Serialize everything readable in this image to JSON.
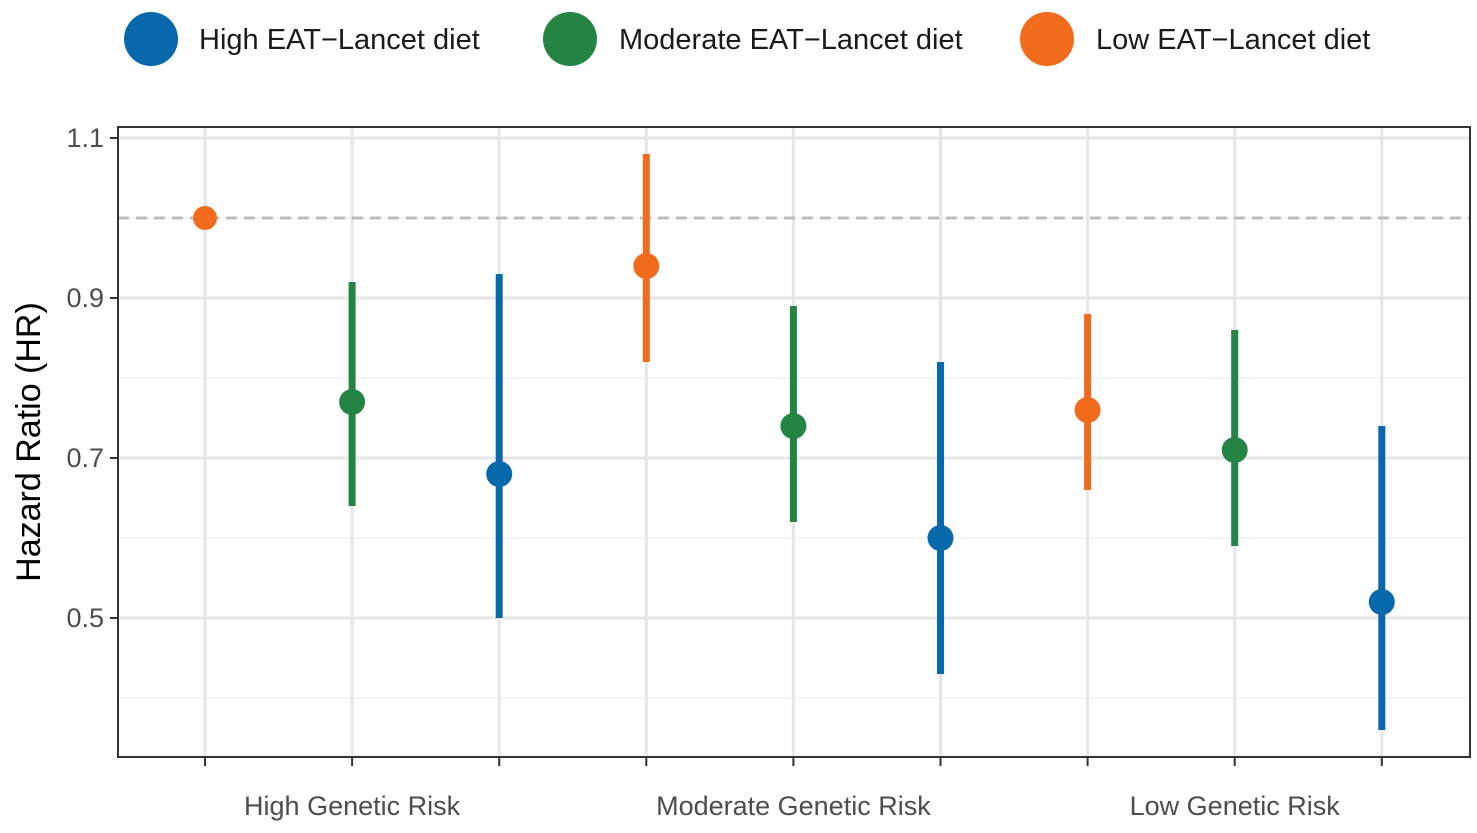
{
  "colors": {
    "high_diet": "#0868ac",
    "moderate_diet": "#238443",
    "low_diet": "#f26b1d",
    "reference_line": "#bdbdbd",
    "grid_major": "#e6e6e6",
    "grid_minor": "#f0f0f0",
    "panel_border": "#333333"
  },
  "chart_data": {
    "type": "scatter",
    "subtype": "point-range (dot and whisker)",
    "title": "",
    "xlabel": "",
    "ylabel": "Hazard Ratio (HR)",
    "ylim": [
      0.33,
      1.11
    ],
    "yticks": [
      0.5,
      0.7,
      0.9,
      1.1
    ],
    "ytick_labels": [
      "0.5",
      "0.7",
      "0.9",
      "1.1"
    ],
    "reference_line": 1.0,
    "grid": true,
    "legend_position": "top",
    "groups": [
      "High Genetic Risk",
      "Moderate Genetic Risk",
      "Low Genetic Risk"
    ],
    "series": [
      {
        "name": "High EAT−Lancet diet",
        "color_key": "high_diet",
        "points": [
          {
            "group": "High Genetic Risk",
            "slot": 2,
            "hr": 0.68,
            "lower": 0.5,
            "upper": 0.93
          },
          {
            "group": "Moderate Genetic Risk",
            "slot": 5,
            "hr": 0.6,
            "lower": 0.43,
            "upper": 0.82
          },
          {
            "group": "Low Genetic Risk",
            "slot": 8,
            "hr": 0.52,
            "lower": 0.36,
            "upper": 0.74
          }
        ]
      },
      {
        "name": "Moderate EAT−Lancet diet",
        "color_key": "moderate_diet",
        "points": [
          {
            "group": "High Genetic Risk",
            "slot": 1,
            "hr": 0.77,
            "lower": 0.64,
            "upper": 0.92
          },
          {
            "group": "Moderate Genetic Risk",
            "slot": 4,
            "hr": 0.74,
            "lower": 0.62,
            "upper": 0.89
          },
          {
            "group": "Low Genetic Risk",
            "slot": 7,
            "hr": 0.71,
            "lower": 0.59,
            "upper": 0.86
          }
        ]
      },
      {
        "name": "Low EAT−Lancet diet",
        "color_key": "low_diet",
        "points": [
          {
            "group": "High Genetic Risk",
            "slot": 0,
            "hr": 1.0,
            "lower": 1.0,
            "upper": 1.0
          },
          {
            "group": "Moderate Genetic Risk",
            "slot": 3,
            "hr": 0.94,
            "lower": 0.82,
            "upper": 1.08
          },
          {
            "group": "Low Genetic Risk",
            "slot": 6,
            "hr": 0.76,
            "lower": 0.66,
            "upper": 0.88
          }
        ]
      }
    ]
  }
}
